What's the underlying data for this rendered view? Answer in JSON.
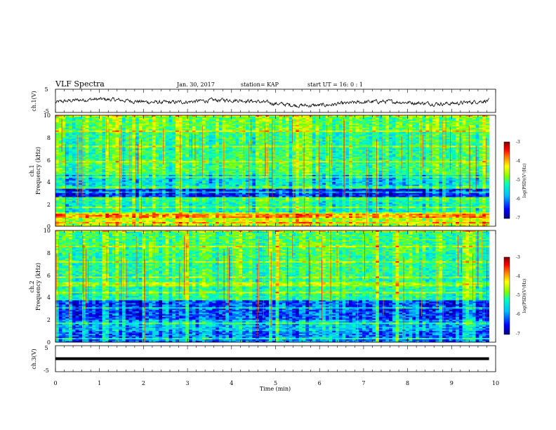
{
  "header": {
    "title": "VLF Spectra",
    "date": "Jan. 30, 2017",
    "station": "station= KAP",
    "start": "start  UT =   16: 0  : 1"
  },
  "chart_data": [
    {
      "type": "line",
      "ylabel": "ch.1(V)",
      "ylim": [
        -5,
        5
      ],
      "yticks": [
        "5",
        "-5"
      ],
      "series": [
        {
          "signal": "noisy waveform",
          "range_approx": [
            -3,
            2
          ]
        }
      ]
    },
    {
      "type": "heatmap",
      "ylabel_top": "ch.1",
      "ylabel": "Frequency (kHz)",
      "ylim": [
        0,
        10
      ],
      "yticks": [
        "10",
        "8",
        "6",
        "4",
        "2",
        "0"
      ],
      "colorbar": {
        "label": "log(PSD)(V²/Hz)",
        "ticks": [
          "-3",
          "-4",
          "-5",
          "-6",
          "-7"
        ],
        "range": [
          -7,
          -3
        ]
      }
    },
    {
      "type": "heatmap",
      "ylabel_top": "ch.2",
      "ylabel": "Frequency (kHz)",
      "ylim": [
        0,
        10
      ],
      "yticks": [
        "10",
        "8",
        "6",
        "4",
        "2",
        "0"
      ],
      "colorbar": {
        "label": "log(PSD)(V²/Hz)",
        "ticks": [
          "-3",
          "-4",
          "-5",
          "-6",
          "-7"
        ],
        "range": [
          -7,
          -3
        ]
      }
    },
    {
      "type": "line",
      "ylabel": "ch.3(V)",
      "ylim": [
        -5,
        5
      ],
      "yticks": [
        "5",
        "-5"
      ],
      "series": [
        {
          "signal": "constant",
          "value_approx": 0
        }
      ]
    }
  ],
  "xaxis": {
    "label": "Time  (min)",
    "xlim": [
      0,
      10
    ],
    "ticks": [
      "0",
      "1",
      "2",
      "3",
      "4",
      "5",
      "6",
      "7",
      "8",
      "9",
      "10"
    ],
    "data_end_min": 9.85
  },
  "colors": {
    "waveform": "#000000",
    "colormap": [
      "#00007f",
      "#0000ff",
      "#00bfff",
      "#00ffc0",
      "#7fff00",
      "#ffff00",
      "#ff8000",
      "#ff0000",
      "#800000"
    ]
  }
}
